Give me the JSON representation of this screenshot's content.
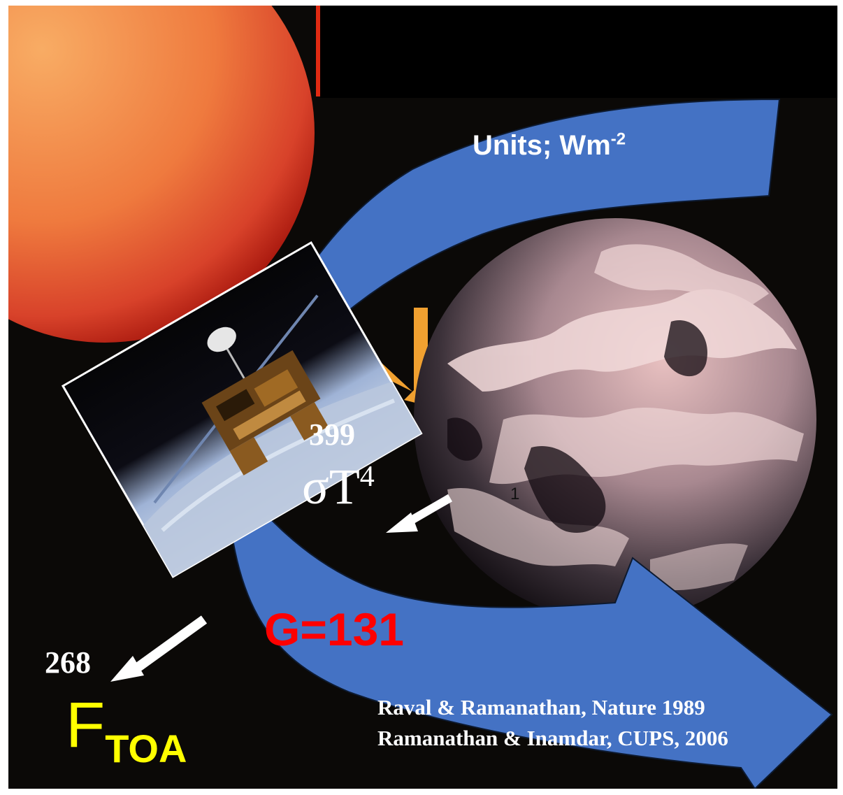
{
  "colors": {
    "background": "#0b0907",
    "arrow_blue": "#4472c4",
    "sun_inner": "#f6a05a",
    "sun_outer": "#c8281c",
    "label_red": "#ff0000",
    "label_yellow": "#ffff00",
    "label_white": "#ffffff"
  },
  "units": {
    "prefix": "Units; Wm",
    "exponent": "-2"
  },
  "surface": {
    "value": "399",
    "symbol_sigma": "σ",
    "symbol_T": "T",
    "exponent": "4",
    "small_mark": "1"
  },
  "greenhouse": {
    "label": "G=131"
  },
  "toa": {
    "value": "268",
    "letter": "F",
    "subscript": "TOA"
  },
  "references": [
    "Raval & Ramanathan, Nature 1989",
    "Ramanathan & Inamdar, CUPS, 2006"
  ],
  "icons": [
    "sun-image",
    "earth-image",
    "satellite-image",
    "white-arrow-icon"
  ]
}
